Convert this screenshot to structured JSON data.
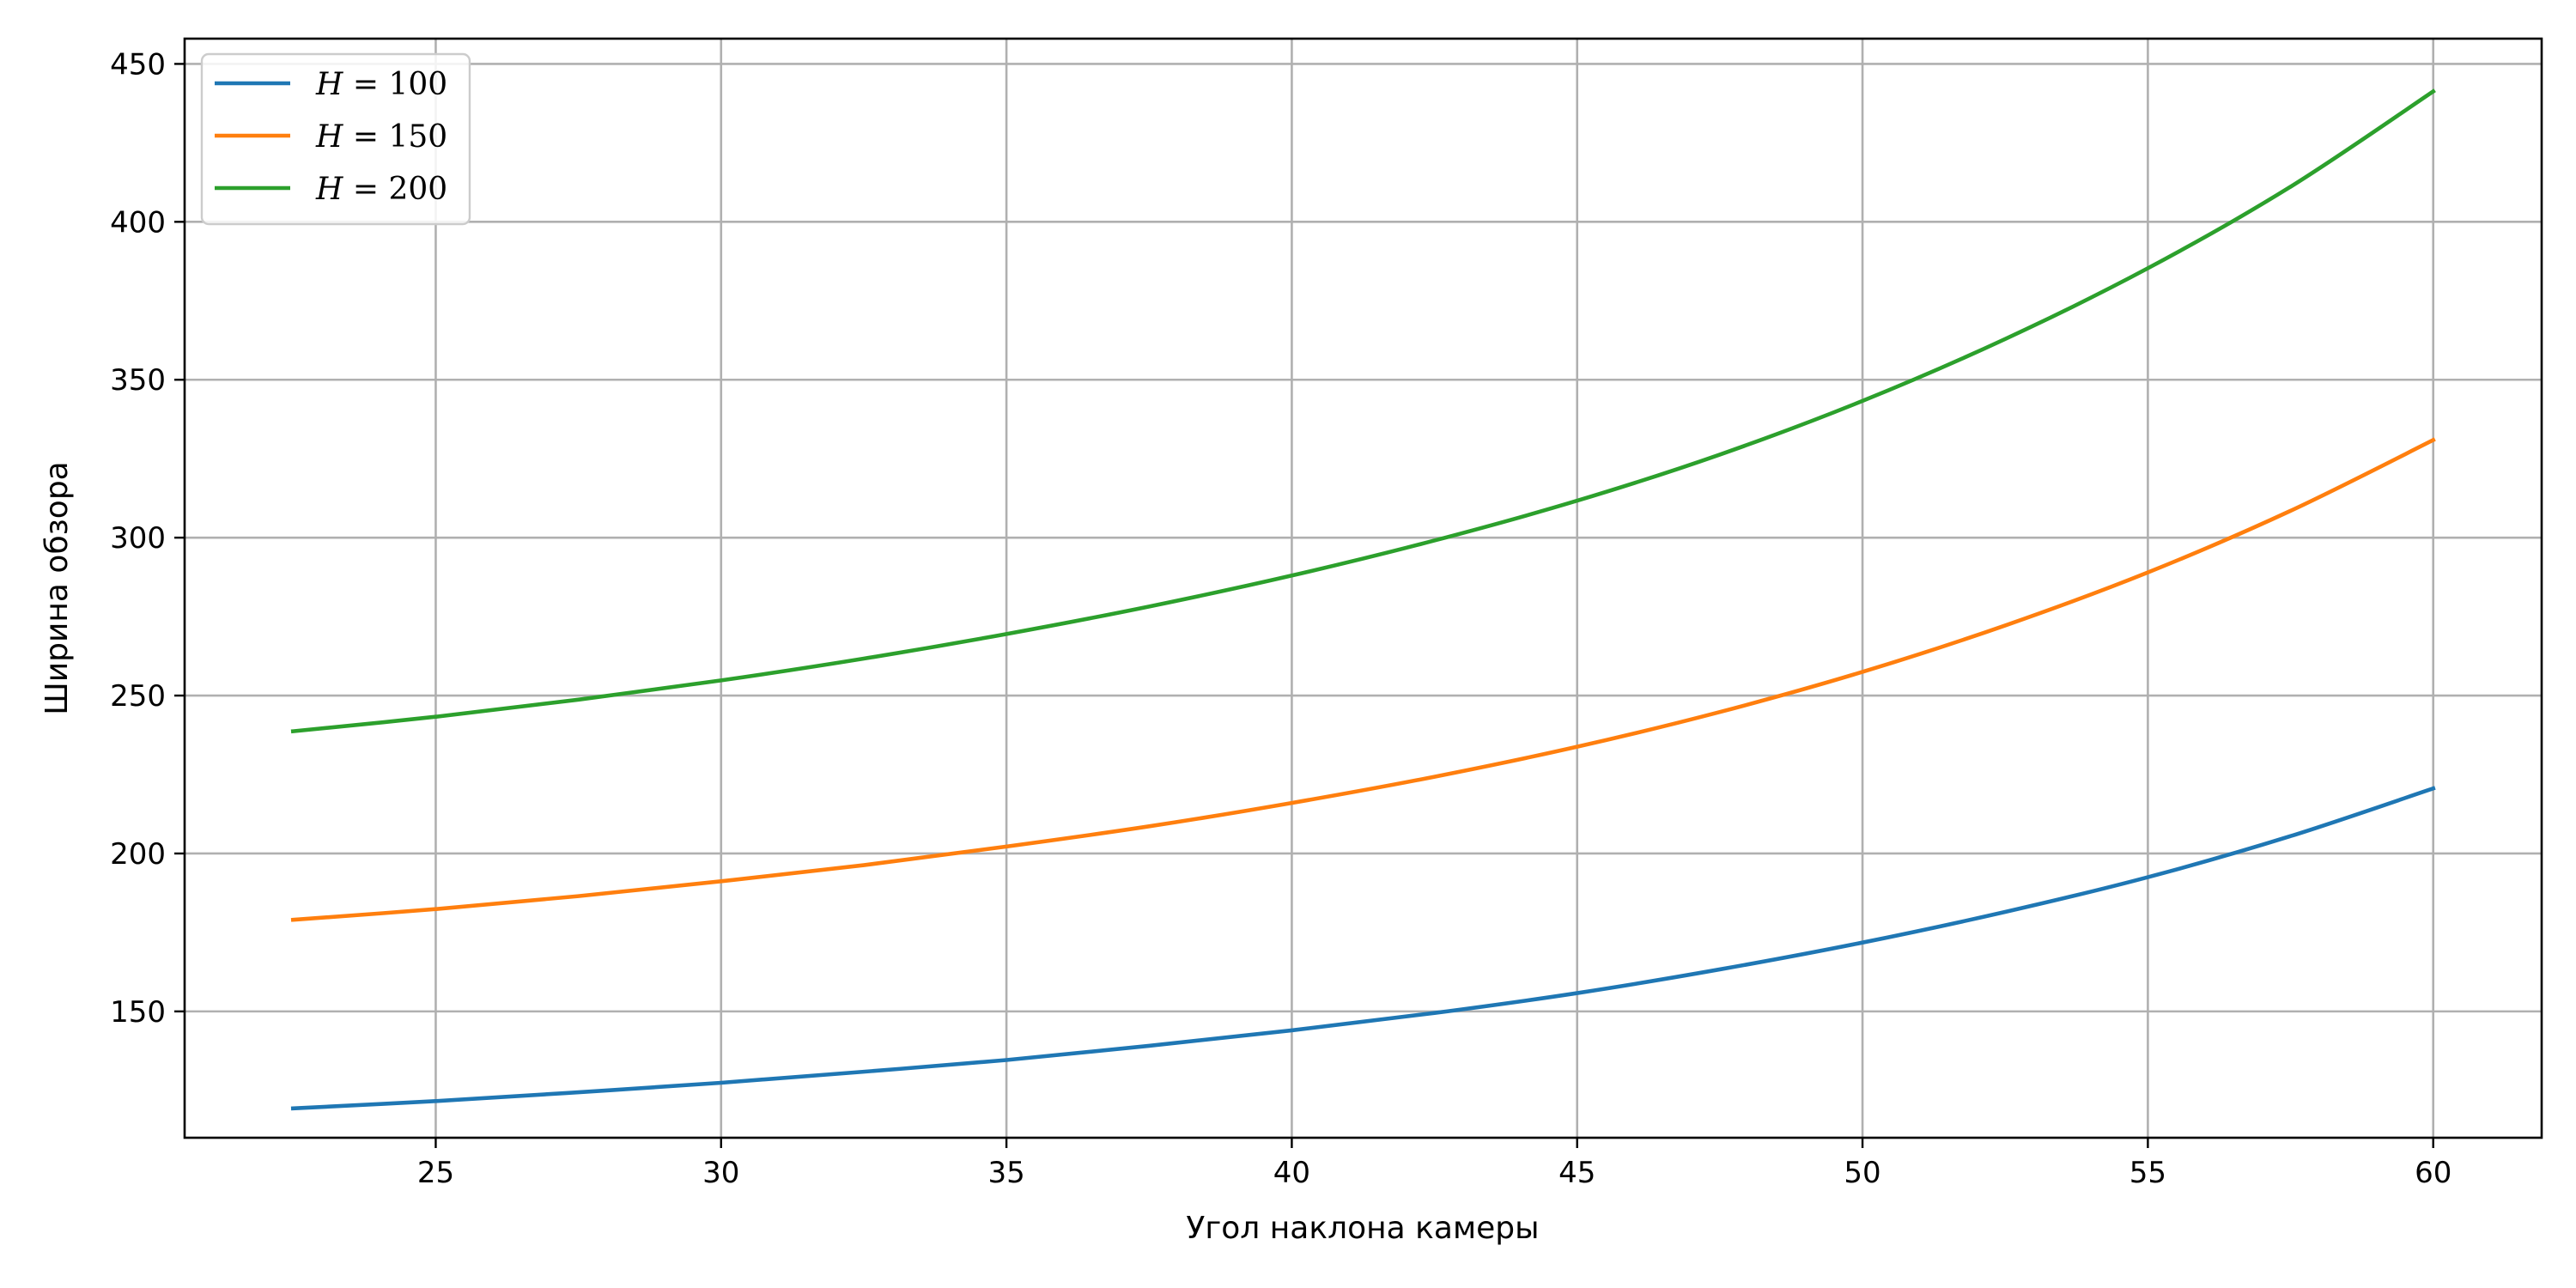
{
  "chart_data": {
    "type": "line",
    "xlabel": "Угол наклона камеры",
    "ylabel": "Ширина обзора",
    "xlim": [
      20.6,
      61.9
    ],
    "ylim": [
      110,
      458
    ],
    "xticks": [
      25,
      30,
      35,
      40,
      45,
      50,
      55,
      60
    ],
    "yticks": [
      150,
      200,
      250,
      300,
      350,
      400,
      450
    ],
    "xtick_labels": [
      "25",
      "30",
      "35",
      "40",
      "45",
      "50",
      "55",
      "60"
    ],
    "ytick_labels": [
      "150",
      "200",
      "250",
      "300",
      "350",
      "400",
      "450"
    ],
    "grid": true,
    "legend_position": "top-left",
    "x": [
      22.5,
      25,
      27.5,
      30,
      32.5,
      35,
      37.5,
      40,
      42.5,
      45,
      47.5,
      50,
      52.5,
      55,
      57.5,
      60
    ],
    "series": [
      {
        "name": "H = 100",
        "legend_var": "H",
        "legend_value": "100",
        "color": "#1f77b4",
        "values": [
          119.3,
          121.6,
          124.4,
          127.4,
          130.9,
          134.6,
          139.1,
          144.0,
          149.5,
          155.8,
          163.3,
          171.8,
          181.5,
          192.5,
          205.5,
          220.6
        ]
      },
      {
        "name": "H = 150",
        "legend_var": "H",
        "legend_value": "150",
        "color": "#ff7f0e",
        "values": [
          179.0,
          182.4,
          186.5,
          191.2,
          196.3,
          202.2,
          208.6,
          216.0,
          224.3,
          233.8,
          244.8,
          257.5,
          272.2,
          289.0,
          308.5,
          330.9
        ]
      },
      {
        "name": "H = 200",
        "legend_var": "H",
        "legend_value": "200",
        "color": "#2ca02c",
        "values": [
          238.7,
          243.3,
          248.7,
          254.8,
          261.7,
          269.5,
          278.2,
          288.0,
          299.1,
          311.7,
          326.3,
          343.3,
          362.9,
          385.3,
          411.1,
          441.3
        ]
      }
    ]
  }
}
